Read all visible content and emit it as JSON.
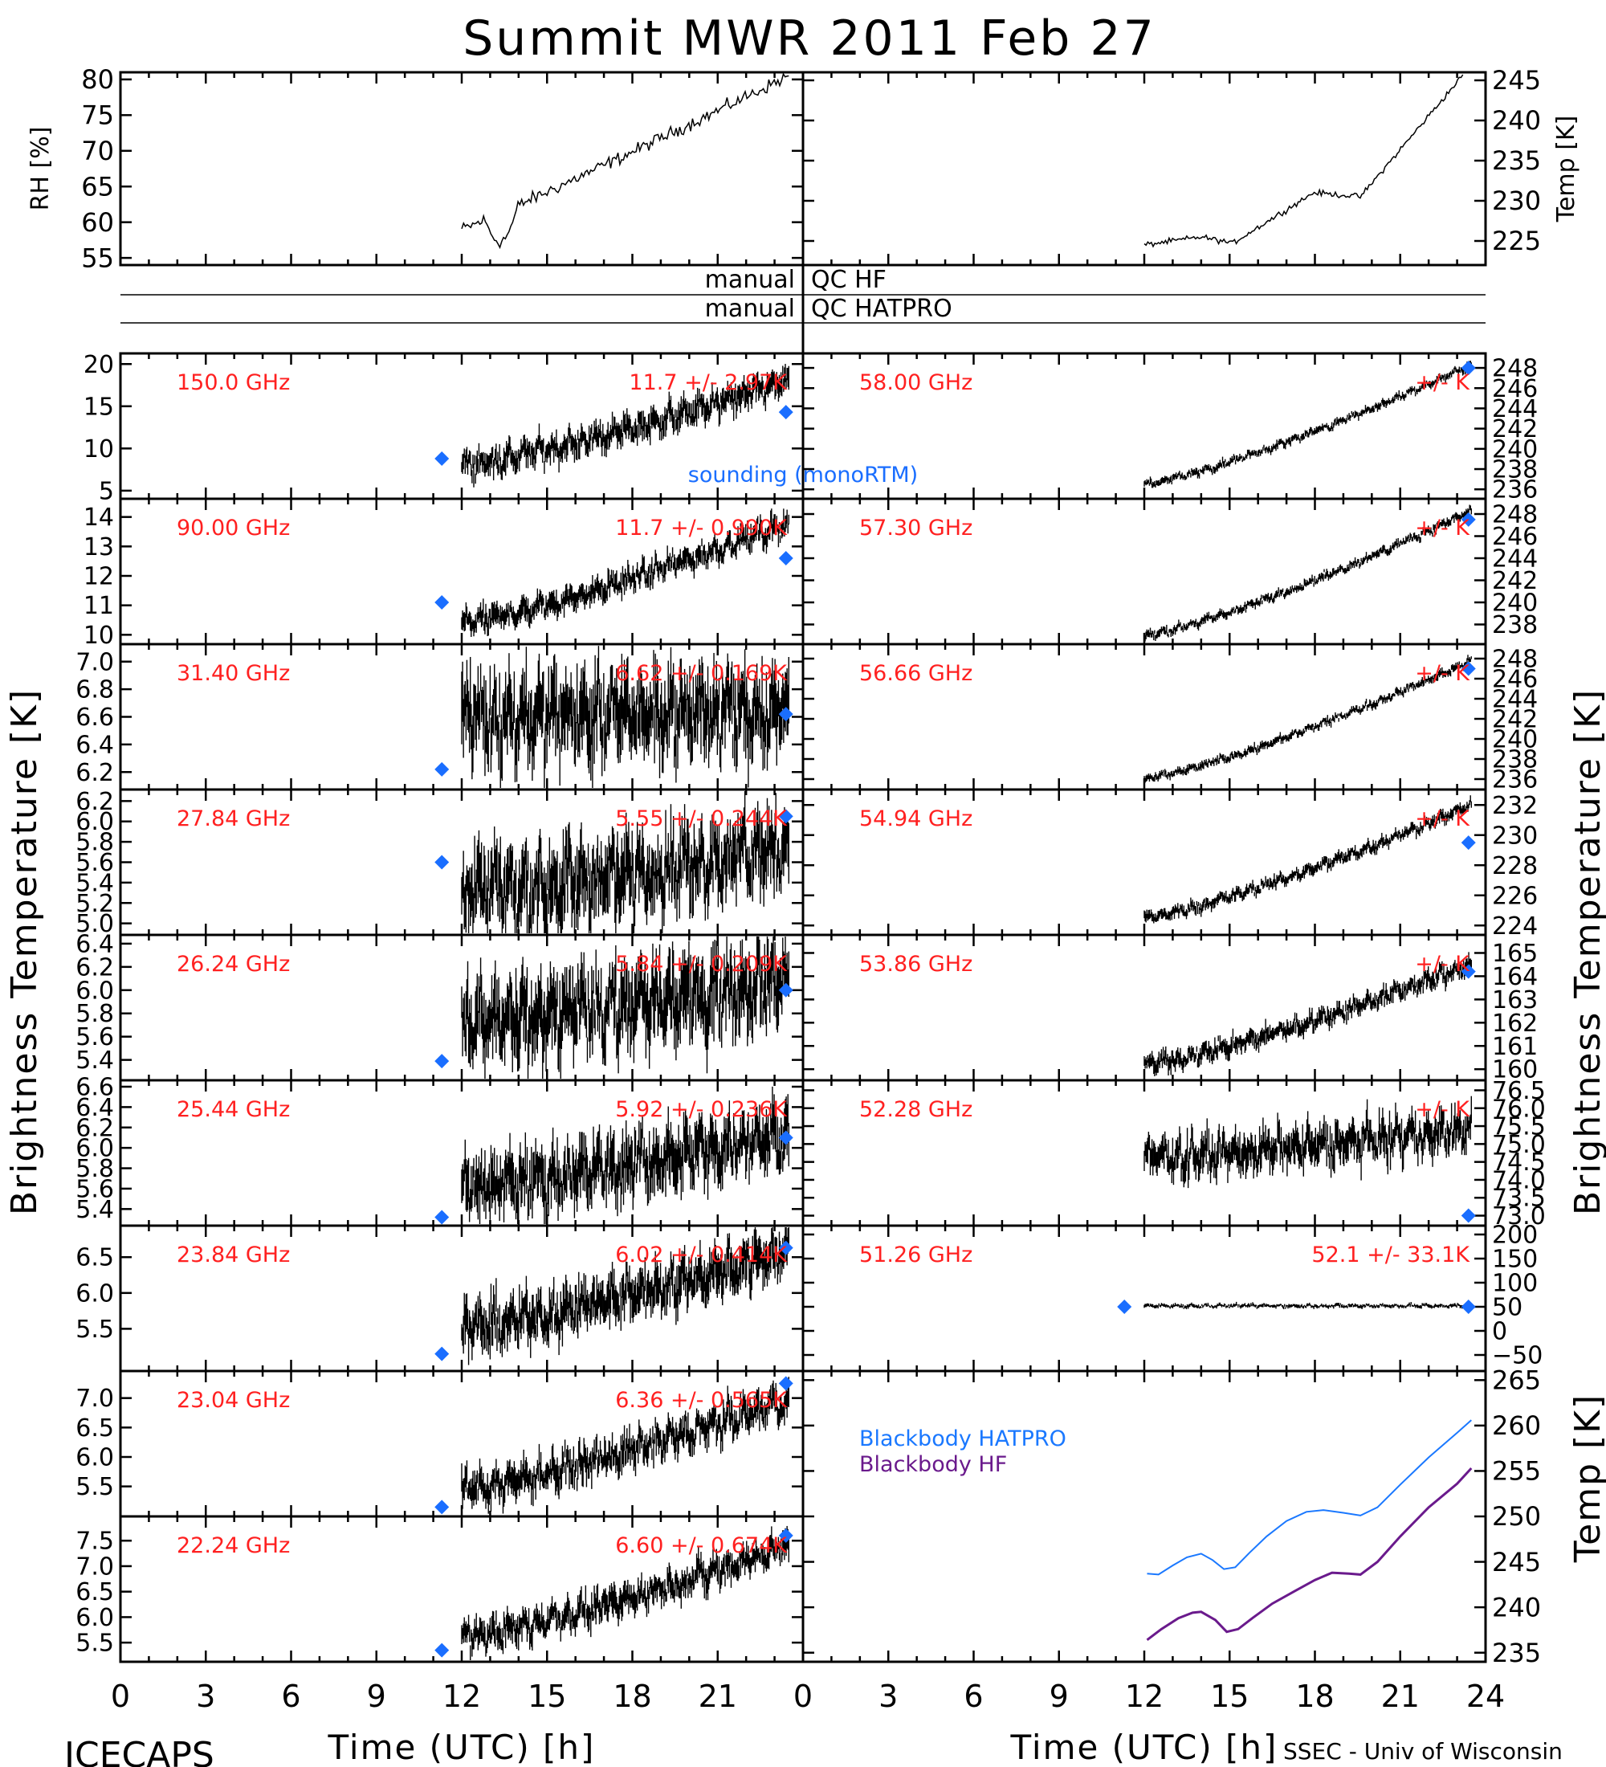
{
  "title": "Summit MWR 2011 Feb 27",
  "footer_left": "ICECAPS",
  "footer_right": "SSEC - Univ of Wisconsin",
  "colors": {
    "label_red": "#ff2020",
    "sounding": "#1a6eff",
    "bb_hatpro": "#1a78ff",
    "bb_hf": "#6a1a8c",
    "data": "#000000"
  },
  "qc": {
    "hf_label_left": "manual",
    "hf_label_right": "QC HF",
    "hatpro_label_left": "manual",
    "hatpro_label_right": "QC HATPRO"
  },
  "axes": {
    "x_label": "Time (UTC) [h]",
    "x_ticks": [
      "0",
      "3",
      "6",
      "9",
      "12",
      "15",
      "18",
      "21",
      "24"
    ],
    "left_y_label": "Brightness Temperature [K]",
    "right_y_label": "Brightness Temperature [K]",
    "rh_label": "RH [%]",
    "temp_label": "Temp [K]",
    "bb_temp_label": "Temp [K]",
    "sounding_note": "sounding (monoRTM)"
  },
  "chart_data": {
    "type": "line",
    "x_range": [
      0,
      24
    ],
    "rh_panel": {
      "ylim": [
        54,
        81
      ],
      "ticks": [
        55,
        60,
        65,
        70,
        75,
        80
      ],
      "x_start": 12,
      "x_end": 23.5,
      "y_start": 59,
      "y_end": 80.5
    },
    "temp_panel": {
      "ylim": [
        222,
        246
      ],
      "ticks": [
        225,
        230,
        235,
        240,
        245
      ],
      "x_start": 12,
      "x_end": 23.2,
      "y_start": 224.5,
      "y_end": 245.5
    },
    "left_channels": [
      {
        "freq": "150.0 GHz",
        "stat": "11.7 +/- 2.97K",
        "ylim": [
          4.8,
          20.5
        ],
        "ticks": [
          5,
          10,
          15,
          20
        ],
        "tick_labels": [
          "5",
          "10",
          "15",
          "20"
        ],
        "start": 8,
        "end": 18,
        "noise": 1.2,
        "sounding": [
          [
            11.3,
            8.8
          ],
          [
            23.4,
            14.3
          ]
        ]
      },
      {
        "freq": "90.00 GHz",
        "stat": "11.7 +/- 0.990K",
        "ylim": [
          9.9,
          14.4
        ],
        "ticks": [
          10,
          11,
          12,
          13,
          14
        ],
        "tick_labels": [
          "10",
          "11",
          "12",
          "13",
          "14"
        ],
        "start": 10.4,
        "end": 13.8,
        "noise": 0.3,
        "sounding": [
          [
            11.3,
            11.1
          ],
          [
            23.4,
            12.6
          ]
        ]
      },
      {
        "freq": "31.40 GHz",
        "stat": "6.62 +/- 0.169K",
        "ylim": [
          6.12,
          7.08
        ],
        "ticks": [
          6.2,
          6.4,
          6.6,
          6.8,
          7.0
        ],
        "tick_labels": [
          "6.2",
          "6.4",
          "6.6",
          "6.8",
          "7.0"
        ],
        "start": 6.6,
        "end": 6.65,
        "noise": 0.22,
        "sounding": [
          [
            11.3,
            6.22
          ],
          [
            23.4,
            6.62
          ]
        ]
      },
      {
        "freq": "27.84 GHz",
        "stat": "5.55 +/- 0.244K",
        "ylim": [
          4.95,
          6.25
        ],
        "ticks": [
          5.0,
          5.2,
          5.4,
          5.6,
          5.8,
          6.0,
          6.2
        ],
        "tick_labels": [
          "5.0",
          "5.2",
          "5.4",
          "5.6",
          "5.8",
          "6.0",
          "6.2"
        ],
        "start": 5.3,
        "end": 5.75,
        "noise": 0.28,
        "sounding": [
          [
            11.3,
            5.6
          ],
          [
            23.4,
            6.05
          ]
        ]
      },
      {
        "freq": "26.24 GHz",
        "stat": "5.84 +/- 0.209K",
        "ylim": [
          5.28,
          6.42
        ],
        "ticks": [
          5.4,
          5.6,
          5.8,
          6.0,
          6.2,
          6.4
        ],
        "tick_labels": [
          "5.4",
          "5.6",
          "5.8",
          "6.0",
          "6.2",
          "6.4"
        ],
        "start": 5.7,
        "end": 6.1,
        "noise": 0.25,
        "sounding": [
          [
            11.3,
            5.39
          ],
          [
            23.4,
            6.0
          ]
        ]
      },
      {
        "freq": "25.44 GHz",
        "stat": "5.92 +/- 0.236K",
        "ylim": [
          5.3,
          6.6
        ],
        "ticks": [
          5.4,
          5.6,
          5.8,
          6.0,
          6.2,
          6.4,
          6.6
        ],
        "tick_labels": [
          "5.4",
          "5.6",
          "5.8",
          "6.0",
          "6.2",
          "6.4",
          "6.6"
        ],
        "start": 5.6,
        "end": 6.15,
        "noise": 0.22,
        "sounding": [
          [
            11.3,
            5.32
          ],
          [
            23.4,
            6.1
          ]
        ]
      },
      {
        "freq": "23.84 GHz",
        "stat": "6.02 +/- 0.414K",
        "ylim": [
          5.0,
          6.85
        ],
        "ticks": [
          5.5,
          6.0,
          6.5
        ],
        "tick_labels": [
          "5.5",
          "6.0",
          "6.5"
        ],
        "start": 5.5,
        "end": 6.6,
        "noise": 0.25,
        "sounding": [
          [
            11.3,
            5.15
          ],
          [
            23.4,
            6.63
          ]
        ]
      },
      {
        "freq": "23.04 GHz",
        "stat": "6.36 +/- 0.565K",
        "ylim": [
          5.1,
          7.35
        ],
        "ticks": [
          5.5,
          6.0,
          6.5,
          7.0
        ],
        "tick_labels": [
          "5.5",
          "6.0",
          "6.5",
          "7.0"
        ],
        "start": 5.45,
        "end": 6.95,
        "noise": 0.22,
        "sounding": [
          [
            11.3,
            5.15
          ],
          [
            23.4,
            7.25
          ]
        ]
      },
      {
        "freq": "22.24 GHz",
        "stat": "6.60 +/- 0.674K",
        "ylim": [
          5.25,
          7.85
        ],
        "ticks": [
          5.5,
          6.0,
          6.5,
          7.0,
          7.5
        ],
        "tick_labels": [
          "5.5",
          "6.0",
          "6.5",
          "7.0",
          "7.5"
        ],
        "start": 5.6,
        "end": 7.4,
        "noise": 0.22,
        "sounding": [
          [
            11.3,
            5.35
          ],
          [
            23.4,
            7.6
          ]
        ]
      }
    ],
    "right_channels": [
      {
        "freq": "58.00 GHz",
        "stat": "+/-      K",
        "ylim": [
          235.7,
          248.8
        ],
        "ticks": [
          236,
          238,
          240,
          242,
          244,
          246,
          248
        ],
        "tick_labels": [
          "236",
          "238",
          "240",
          "242",
          "244",
          "246",
          "248"
        ],
        "start": 236.5,
        "end": 248.3,
        "noise": 0.3,
        "sounding": [
          [
            23.4,
            248.0
          ]
        ]
      },
      {
        "freq": "57.30 GHz",
        "stat": "+/-      K",
        "ylim": [
          236.8,
          248.8
        ],
        "ticks": [
          238,
          240,
          242,
          244,
          246,
          248
        ],
        "tick_labels": [
          "238",
          "240",
          "242",
          "244",
          "246",
          "248"
        ],
        "start": 237.0,
        "end": 248.3,
        "noise": 0.3,
        "sounding": [
          [
            23.4,
            247.5
          ]
        ]
      },
      {
        "freq": "56.66 GHz",
        "stat": "+/-      K",
        "ylim": [
          235.6,
          248.8
        ],
        "ticks": [
          236,
          238,
          240,
          242,
          244,
          246,
          248
        ],
        "tick_labels": [
          "236",
          "238",
          "240",
          "242",
          "244",
          "246",
          "248"
        ],
        "start": 236.0,
        "end": 247.8,
        "noise": 0.3,
        "sounding": [
          [
            23.4,
            247.0
          ]
        ]
      },
      {
        "freq": "54.94 GHz",
        "stat": "+/-      K",
        "ylim": [
          223.8,
          232.6
        ],
        "ticks": [
          224,
          226,
          228,
          230,
          232
        ],
        "tick_labels": [
          "224",
          "226",
          "228",
          "230",
          "232"
        ],
        "start": 224.5,
        "end": 232.0,
        "noise": 0.3,
        "sounding": [
          [
            23.4,
            229.5
          ]
        ]
      },
      {
        "freq": "53.86 GHz",
        "stat": "+/-      K",
        "ylim": [
          159.8,
          165.5
        ],
        "ticks": [
          160,
          161,
          162,
          163,
          164,
          165
        ],
        "tick_labels": [
          "160",
          "161",
          "162",
          "163",
          "164",
          "165"
        ],
        "start": 160.2,
        "end": 164.5,
        "noise": 0.3,
        "sounding": [
          [
            23.4,
            164.2
          ]
        ]
      },
      {
        "freq": "52.28 GHz",
        "stat": "+/-      K",
        "ylim": [
          72.9,
          76.6
        ],
        "ticks": [
          73.0,
          73.5,
          74.0,
          74.5,
          75.0,
          75.5,
          76.0,
          76.5
        ],
        "tick_labels": [
          "73.0",
          "73.5",
          "74.0",
          "74.5",
          "75.0",
          "75.5",
          "76.0",
          "76.5"
        ],
        "start": 74.6,
        "end": 75.4,
        "noise": 0.4,
        "sounding": [
          [
            23.4,
            73.0
          ]
        ]
      },
      {
        "freq": "51.26 GHz",
        "stat": "52.1 +/- 33.1K",
        "ylim": [
          -70,
          205
        ],
        "ticks": [
          -50,
          0,
          50,
          100,
          150,
          200
        ],
        "tick_labels": [
          "−50",
          "0",
          "50",
          "100",
          "150",
          "200"
        ],
        "start": 52,
        "end": 52,
        "noise": 3,
        "sounding": [
          [
            11.3,
            50
          ],
          [
            23.4,
            50
          ]
        ]
      }
    ],
    "blackbody": {
      "ylim": [
        234,
        266
      ],
      "ticks": [
        235,
        240,
        245,
        250,
        255,
        260,
        265
      ],
      "legend": [
        "Blackbody HATPRO",
        "Blackbody HF"
      ],
      "hatpro": [
        [
          12.1,
          243.7
        ],
        [
          12.5,
          243.6
        ],
        [
          13.0,
          244.6
        ],
        [
          13.5,
          245.5
        ],
        [
          14.0,
          245.9
        ],
        [
          14.4,
          245.2
        ],
        [
          14.8,
          244.2
        ],
        [
          15.2,
          244.4
        ],
        [
          15.7,
          246
        ],
        [
          16.3,
          247.8
        ],
        [
          17.0,
          249.5
        ],
        [
          17.7,
          250.5
        ],
        [
          18.3,
          250.7
        ],
        [
          19.0,
          250.4
        ],
        [
          19.6,
          250.1
        ],
        [
          20.2,
          251.0
        ],
        [
          21.0,
          253.5
        ],
        [
          22.0,
          256.5
        ],
        [
          23.0,
          259.2
        ],
        [
          23.5,
          260.6
        ]
      ],
      "hf": [
        [
          12.1,
          236.4
        ],
        [
          12.6,
          237.6
        ],
        [
          13.2,
          238.8
        ],
        [
          13.7,
          239.4
        ],
        [
          14.0,
          239.5
        ],
        [
          14.5,
          238.6
        ],
        [
          14.9,
          237.3
        ],
        [
          15.3,
          237.6
        ],
        [
          15.8,
          238.8
        ],
        [
          16.5,
          240.4
        ],
        [
          17.3,
          241.8
        ],
        [
          18.0,
          243.0
        ],
        [
          18.6,
          243.8
        ],
        [
          19.2,
          243.7
        ],
        [
          19.6,
          243.6
        ],
        [
          20.2,
          245.0
        ],
        [
          21.0,
          247.8
        ],
        [
          22.0,
          251.0
        ],
        [
          23.0,
          253.6
        ],
        [
          23.5,
          255.3
        ]
      ]
    }
  }
}
